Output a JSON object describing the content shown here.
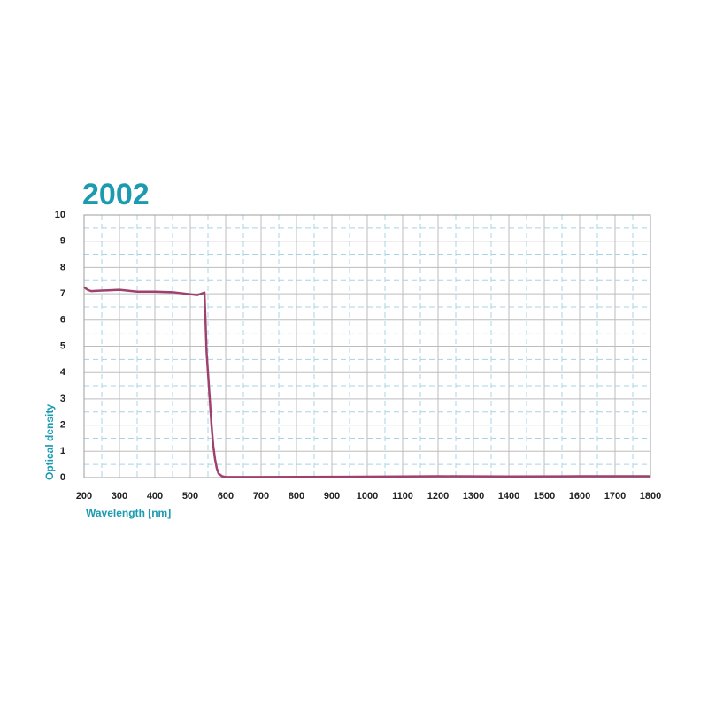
{
  "chart_data": {
    "type": "line",
    "title": "2002",
    "xlabel": "Wavelength [nm]",
    "ylabel": "Optical density",
    "x": [
      200,
      210,
      220,
      250,
      300,
      350,
      400,
      450,
      500,
      520,
      535,
      540,
      543,
      546,
      550,
      555,
      560,
      565,
      570,
      575,
      580,
      590,
      600,
      700,
      900,
      1100,
      1200,
      1400,
      1600,
      1800
    ],
    "values": [
      7.25,
      7.15,
      7.1,
      7.12,
      7.15,
      7.08,
      7.08,
      7.06,
      6.98,
      6.95,
      7.02,
      7.05,
      6.0,
      4.8,
      4.0,
      3.0,
      2.0,
      1.2,
      0.7,
      0.35,
      0.15,
      0.05,
      0.02,
      0.02,
      0.03,
      0.04,
      0.05,
      0.04,
      0.05,
      0.05
    ],
    "color": "#a0406f",
    "xlim": [
      200,
      1800
    ],
    "xticks": [
      200,
      300,
      400,
      500,
      600,
      700,
      800,
      900,
      1000,
      1100,
      1200,
      1300,
      1400,
      1500,
      1600,
      1700,
      1800
    ],
    "ylim": [
      0,
      10
    ],
    "yticks": [
      0,
      1,
      2,
      3,
      4,
      5,
      6,
      7,
      8,
      9,
      10
    ],
    "grid": true
  }
}
